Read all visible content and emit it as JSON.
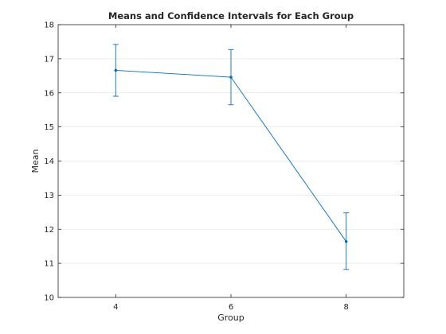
{
  "chart_data": {
    "type": "line",
    "title": "Means and Confidence Intervals for Each Group",
    "xlabel": "Group",
    "ylabel": "Mean",
    "xlim": [
      3,
      9
    ],
    "ylim": [
      10,
      18
    ],
    "x_ticks": [
      4,
      6,
      8
    ],
    "y_ticks": [
      10,
      11,
      12,
      13,
      14,
      15,
      16,
      17,
      18
    ],
    "grid": "horizontal",
    "series": [
      {
        "x": [
          4,
          6,
          8
        ],
        "y": [
          16.66,
          16.46,
          11.64
        ],
        "ci_lower": [
          15.9,
          15.65,
          10.82
        ],
        "ci_upper": [
          17.42,
          17.27,
          12.48
        ],
        "color": "#0072BD",
        "marker": "dot"
      }
    ]
  }
}
